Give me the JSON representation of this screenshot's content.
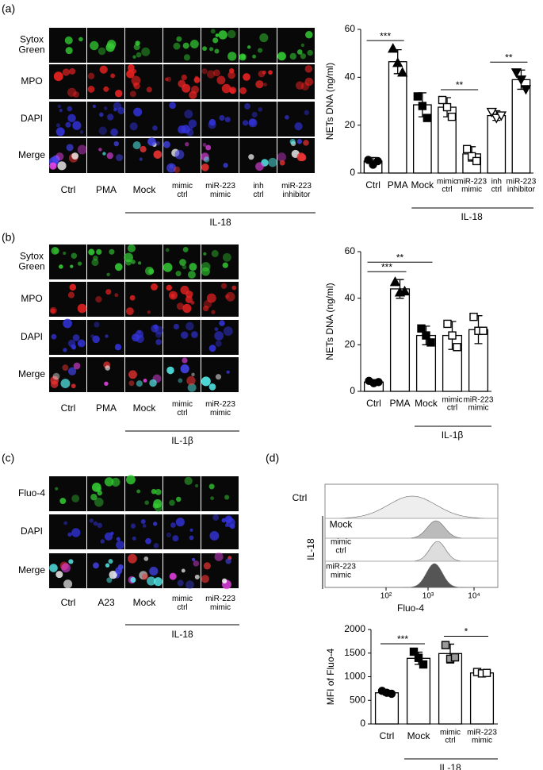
{
  "panels": [
    "(a)",
    "(b)",
    "(c)",
    "(d)"
  ],
  "micrographs": [
    {
      "rows": [
        [
          "Sytox",
          "Green"
        ],
        [
          "MPO"
        ],
        [
          "DAPI"
        ],
        [
          "Merge"
        ]
      ],
      "columns": [
        [
          "Ctrl"
        ],
        [
          "PMA"
        ],
        [
          "Mock"
        ],
        [
          "mimic",
          "ctrl"
        ],
        [
          "miR-223",
          "mimic"
        ],
        [
          "inh",
          "ctrl"
        ],
        [
          "miR-223",
          "inhibitor"
        ]
      ],
      "group": "IL-18"
    },
    {
      "rows": [
        [
          "Sytox",
          "Green"
        ],
        [
          "MPO"
        ],
        [
          "DAPI"
        ],
        [
          "Merge"
        ]
      ],
      "columns": [
        [
          "Ctrl"
        ],
        [
          "PMA"
        ],
        [
          "Mock"
        ],
        [
          "mimic",
          "ctrl"
        ],
        [
          "miR-223",
          "mimic"
        ]
      ],
      "group": "IL-1β"
    },
    {
      "rows": [
        [
          "Fluo-4"
        ],
        [
          "DAPI"
        ],
        [
          "Merge"
        ]
      ],
      "columns": [
        [
          "Ctrl"
        ],
        [
          "A23"
        ],
        [
          "Mock"
        ],
        [
          "mimic",
          "ctrl"
        ],
        [
          "miR-223",
          "mimic"
        ]
      ],
      "group": "IL-18"
    }
  ],
  "flow": {
    "rows": [
      [
        "Ctrl"
      ],
      [
        "Mock"
      ],
      [
        "mimic",
        "ctrl"
      ],
      [
        "miR-223",
        "mimic"
      ]
    ],
    "group": "IL-18",
    "xlabel": "Fluo-4",
    "xtick_labels": [
      "10²",
      "10³",
      "10⁴"
    ]
  },
  "chart_data": [
    {
      "type": "bar",
      "ylabel": "NETs DNA (ng/ml)",
      "categories": [
        [
          "Ctrl"
        ],
        [
          "PMA"
        ],
        [
          "Mock"
        ],
        [
          "mimic",
          "ctrl"
        ],
        [
          "miR-223",
          "mimic"
        ],
        [
          "inh",
          "ctrl"
        ],
        [
          "miR-223",
          "inhibitor"
        ]
      ],
      "values": [
        5,
        46.5,
        28.5,
        27.5,
        8,
        24,
        39
      ],
      "errors": [
        1.5,
        5,
        5,
        4,
        3,
        2,
        4
      ],
      "points": [
        [
          5.5,
          3.5,
          5
        ],
        [
          52,
          46,
          42
        ],
        [
          32,
          28,
          23
        ],
        [
          30.5,
          27.5,
          23.5
        ],
        [
          10,
          7,
          5
        ],
        [
          25.5,
          23,
          24
        ],
        [
          42,
          39,
          35
        ]
      ],
      "markers": [
        "circle",
        "triangle",
        "square",
        "square",
        "square",
        "triangle-down",
        "triangle-down"
      ],
      "marker_fills": [
        "#000",
        "#000",
        "#000",
        "#fff",
        "#fff",
        "#fff",
        "#000"
      ],
      "significance": [
        {
          "from": 0,
          "to": 1,
          "label": "***"
        },
        {
          "from": 3,
          "to": 4,
          "label": "**"
        },
        {
          "from": 5,
          "to": 6,
          "label": "**"
        }
      ],
      "group": "IL-18",
      "ylim": [
        0,
        60
      ],
      "yticks": [
        0,
        20,
        40,
        60
      ]
    },
    {
      "type": "bar",
      "ylabel": "NETs DNA (ng/ml)",
      "categories": [
        [
          "Ctrl"
        ],
        [
          "PMA"
        ],
        [
          "Mock"
        ],
        [
          "mimic",
          "ctrl"
        ],
        [
          "miR-223",
          "mimic"
        ]
      ],
      "values": [
        4,
        44,
        24,
        24,
        26.5
      ],
      "errors": [
        1,
        4,
        4,
        6,
        6
      ],
      "points": [
        [
          4.5,
          3.5,
          4
        ],
        [
          47,
          42.5,
          43
        ],
        [
          27,
          24,
          21
        ],
        [
          29,
          24,
          19
        ],
        [
          32,
          26,
          26
        ]
      ],
      "markers": [
        "circle",
        "triangle",
        "square",
        "square",
        "square"
      ],
      "marker_fills": [
        "#000",
        "#000",
        "#000",
        "#fff",
        "#fff"
      ],
      "significance": [
        {
          "from": 0,
          "to": 1,
          "label": "***"
        },
        {
          "from": 0,
          "to": 2,
          "label": "**"
        }
      ],
      "group": "IL-1β",
      "ylim": [
        0,
        60
      ],
      "yticks": [
        0,
        20,
        40,
        60
      ]
    },
    {
      "type": "bar",
      "ylabel": "MFI of Fluo-4",
      "categories": [
        [
          "Ctrl"
        ],
        [
          "Mock"
        ],
        [
          "mimic",
          "ctrl"
        ],
        [
          "miR-223",
          "mimic"
        ]
      ],
      "values": [
        660,
        1390,
        1490,
        1080
      ],
      "errors": [
        50,
        130,
        200,
        40
      ],
      "points": [
        [
          700,
          660,
          640
        ],
        [
          1530,
          1400,
          1260
        ],
        [
          1670,
          1380,
          1410
        ],
        [
          1100,
          1070,
          1080
        ]
      ],
      "markers": [
        "circle",
        "square",
        "square",
        "square"
      ],
      "marker_fills": [
        "#000",
        "#000",
        "#999",
        "#fff"
      ],
      "significance": [
        {
          "from": 0,
          "to": 1,
          "label": "***"
        },
        {
          "from": 2,
          "to": 3,
          "label": "*"
        }
      ],
      "group": "IL-18",
      "ylim": [
        0,
        2000
      ],
      "yticks": [
        0,
        500,
        1000,
        1500,
        2000
      ]
    }
  ]
}
